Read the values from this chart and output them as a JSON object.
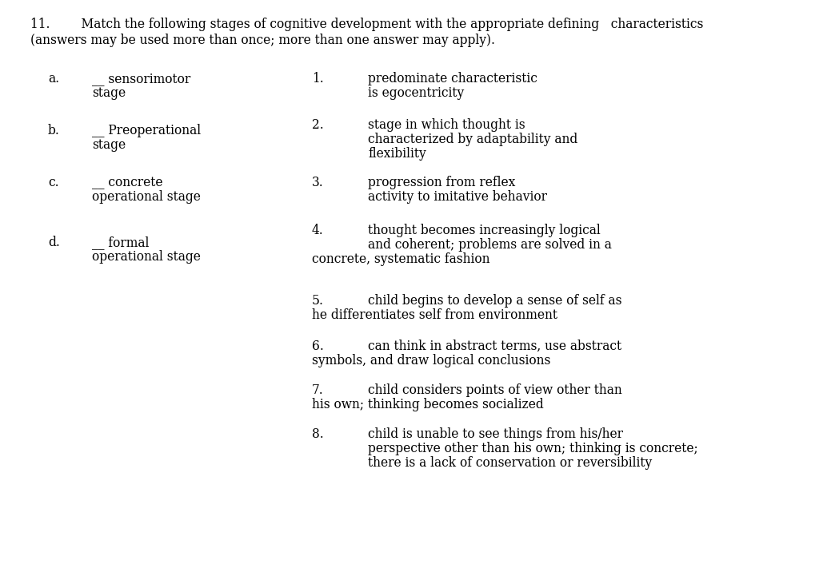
{
  "background_color": "#ffffff",
  "text_color": "#000000",
  "font_family": "DejaVu Serif",
  "title_line1": "11.        Match the following stages of cognitive development with the appropriate defining   characteristics",
  "title_line2": "(answers may be used more than once; more than one answer may apply).",
  "left_items": [
    {
      "label": "a.",
      "line1": "__ sensorimotor",
      "line2": "stage"
    },
    {
      "label": "b.",
      "line1": "__ Preoperational",
      "line2": "stage"
    },
    {
      "label": "c.",
      "line1": "__ concrete",
      "line2": "operational stage"
    },
    {
      "label": "d.",
      "line1": "__ formal",
      "line2": "operational stage"
    }
  ],
  "right_items": [
    {
      "num": "1.",
      "lines": [
        "predominate characteristic",
        "is egocentricity"
      ]
    },
    {
      "num": "2.",
      "lines": [
        "stage in which thought is",
        "characterized by adaptability and",
        "flexibility"
      ]
    },
    {
      "num": "3.",
      "lines": [
        "progression from reflex",
        "activity to imitative behavior"
      ]
    },
    {
      "num": "4.",
      "lines": [
        "thought becomes increasingly logical",
        "and coherent; problems are solved in a",
        "concrete, systematic fashion"
      ]
    },
    {
      "num": "5.",
      "lines": [
        "child begins to develop a sense of self as",
        "he differentiates self from environment"
      ]
    },
    {
      "num": "6.",
      "lines": [
        "can think in abstract terms, use abstract",
        "symbols, and draw logical conclusions"
      ]
    },
    {
      "num": "7.",
      "lines": [
        "child considers points of view other than",
        "his own; thinking becomes socialized"
      ]
    },
    {
      "num": "8.",
      "lines": [
        "child is unable to see things from his/her",
        "perspective other than his own; thinking is concrete;",
        "there is a lack of conservation or reversibility"
      ]
    }
  ],
  "figsize": [
    10.24,
    7.16
  ],
  "dpi": 100,
  "body_fontsize": 11.2,
  "title_fontsize": 11.2
}
